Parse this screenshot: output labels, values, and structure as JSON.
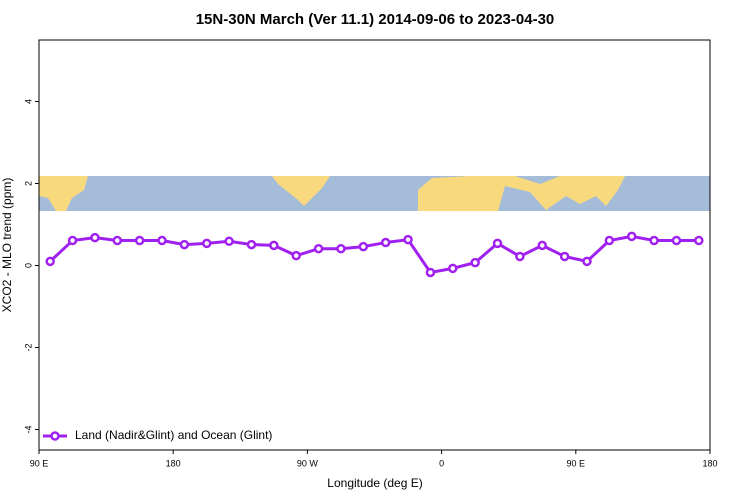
{
  "chart_data": {
    "type": "line",
    "title": "15N-30N March (Ver 11.1)   2014-09-06 to 2023-04-30",
    "x_label": "Longitude (deg E)",
    "y_label": "XCO2 - MLO trend (ppm)",
    "x": [
      97.5,
      112.5,
      127.5,
      142.5,
      157.5,
      172.5,
      187.5,
      202.5,
      217.5,
      232.5,
      247.5,
      262.5,
      277.5,
      292.5,
      307.5,
      322.5,
      337.5,
      352.5,
      367.5,
      382.5,
      397.5,
      412.5,
      427.5,
      442.5,
      457.5,
      472.5,
      487.5,
      502.5,
      517.5,
      532.5
    ],
    "series": [
      {
        "name": "Land (Nadir&Glint) and Ocean (Glint)",
        "color": "#a020f0",
        "values": [
          0.1,
          0.61,
          0.68,
          0.61,
          0.61,
          0.61,
          0.51,
          0.54,
          0.59,
          0.51,
          0.49,
          0.24,
          0.41,
          0.41,
          0.46,
          0.56,
          0.63,
          -0.17,
          -0.07,
          0.07,
          0.54,
          0.22,
          0.49,
          0.22,
          0.1,
          0.61,
          0.71,
          0.61,
          0.61,
          0.61
        ]
      }
    ],
    "xlim": [
      90,
      540
    ],
    "xticks": [
      {
        "value": 90,
        "label": "90 E"
      },
      180,
      {
        "value": 270,
        "label": "90 W"
      },
      {
        "value": 360,
        "label": "0"
      },
      {
        "value": 450,
        "label": "90 E"
      },
      {
        "value": 540,
        "label": "180"
      }
    ],
    "ylim": [
      -4.5,
      5.5
    ],
    "yticks": [
      -4,
      -2,
      0,
      2,
      4
    ],
    "legend": "bottom-left"
  }
}
